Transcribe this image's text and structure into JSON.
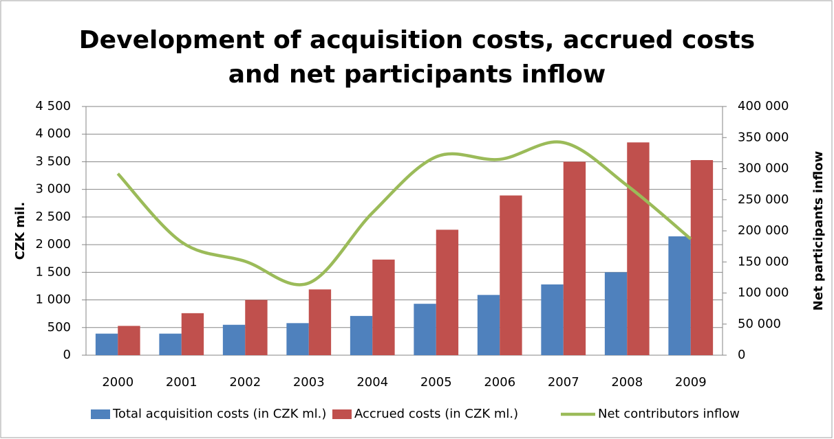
{
  "chart_data": {
    "type": "bar_line",
    "title": [
      "Development of acquisition costs, accrued costs",
      "and net participants inflow"
    ],
    "ylabel": "CZK mil.",
    "y2label": "Net participants inflow",
    "categories": [
      "2000",
      "2001",
      "2002",
      "2003",
      "2004",
      "2005",
      "2006",
      "2007",
      "2008",
      "2009"
    ],
    "series": [
      {
        "name": "Total acquisition costs (in CZK ml.)",
        "color": "#4f81bd",
        "kind": "bar",
        "values": [
          390,
          390,
          550,
          580,
          710,
          930,
          1090,
          1280,
          1500,
          2150
        ]
      },
      {
        "name": "Accrued costs (in CZK ml.)",
        "color": "#c0504d",
        "kind": "bar",
        "values": [
          530,
          760,
          1000,
          1190,
          1730,
          2270,
          2890,
          3500,
          3850,
          3530
        ]
      },
      {
        "name": "Net contributors inflow",
        "color": "#9bbb59",
        "kind": "line",
        "axis": "y2",
        "values": [
          292000,
          182000,
          151000,
          116000,
          229000,
          319000,
          315000,
          342000,
          273000,
          187000
        ]
      }
    ],
    "ylim": [
      0,
      4500
    ],
    "yticks": [
      0,
      500,
      {
        "value": 1000,
        "label": "1 000"
      },
      {
        "value": 1500,
        "label": "1 500"
      },
      {
        "value": 2000,
        "label": "2 000"
      },
      {
        "value": 2500,
        "label": "2 500"
      },
      {
        "value": 3000,
        "label": "3 000"
      },
      {
        "value": 3500,
        "label": "3 500"
      },
      {
        "value": 4000,
        "label": "4 000"
      },
      {
        "value": 4500,
        "label": "4 500"
      }
    ],
    "y2lim": [
      0,
      400000
    ],
    "y2ticks": [
      0,
      {
        "value": 50000,
        "label": "50 000"
      },
      {
        "value": 100000,
        "label": "100 000"
      },
      {
        "value": 150000,
        "label": "150 000"
      },
      {
        "value": 200000,
        "label": "200 000"
      },
      {
        "value": 250000,
        "label": "250 000"
      },
      {
        "value": 300000,
        "label": "300 000"
      },
      {
        "value": 350000,
        "label": "350 000"
      },
      {
        "value": 400000,
        "label": "400 000"
      }
    ],
    "grid": true,
    "legend": "bottom"
  }
}
